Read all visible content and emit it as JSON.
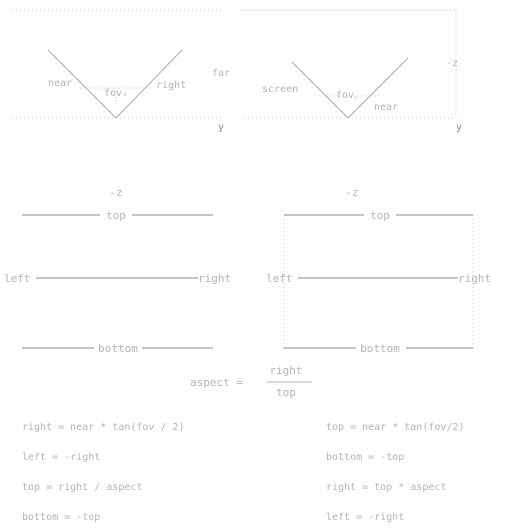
{
  "colors": {
    "line": "#9a9a9a",
    "text": "#b5b5b5",
    "dots": "#c4c4c4"
  },
  "top_left": {
    "near": "near",
    "fov": "fovₓ",
    "right": "right",
    "far": "far",
    "y": "y"
  },
  "top_right": {
    "screen": "screen",
    "fov": "fovᵧ",
    "near": "near",
    "z": "-z",
    "y": "y"
  },
  "left_box": {
    "z": "-z",
    "top": "top",
    "left": "left",
    "right": "right",
    "bottom": "bottom"
  },
  "right_box": {
    "z": "-z",
    "top": "top",
    "left": "left",
    "right": "right",
    "bottom": "bottom"
  },
  "aspect": {
    "lhs": "aspect  =",
    "numerator": "right",
    "denominator": "top"
  },
  "formulas_left": [
    "right = near * tan(fov / 2)",
    "left  = -right",
    "top   = right / aspect",
    "bottom = -top"
  ],
  "formulas_right": [
    "top = near  *  tan(fov/2)",
    "bottom = -top",
    "right  = top * aspect",
    "left = -right"
  ]
}
